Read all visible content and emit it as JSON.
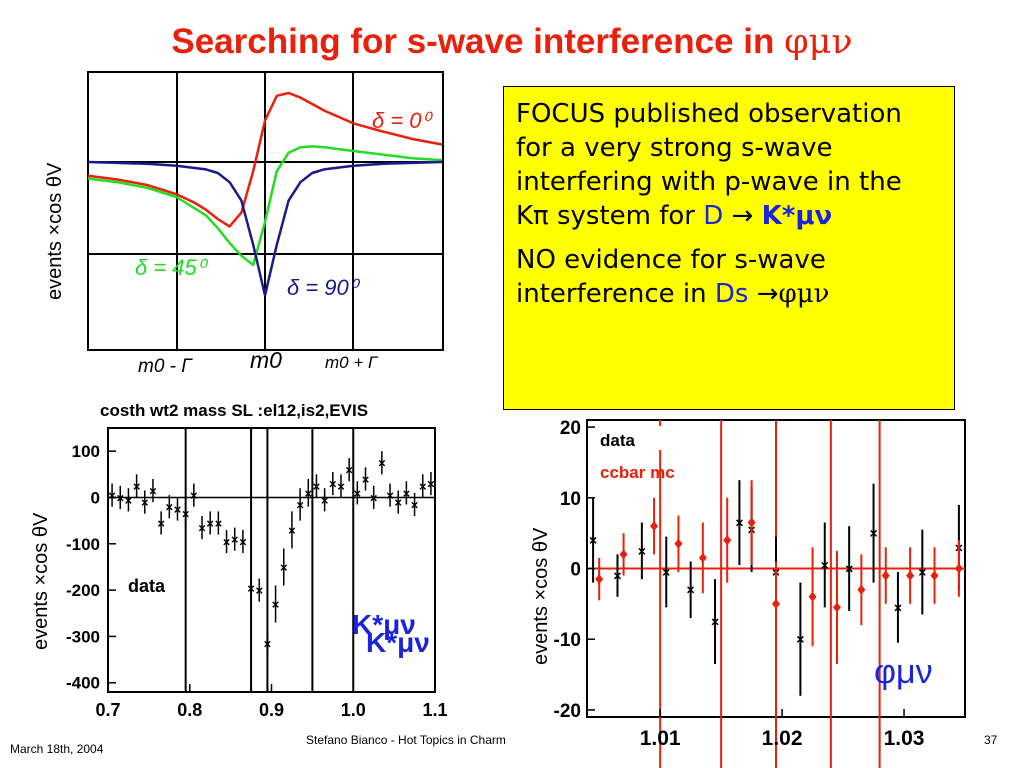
{
  "slide": {
    "title": "Searching for s-wave interference in ",
    "title_symbol": "φμν",
    "footer_date": "March 18th, 2004",
    "footer_center": "Stefano Bianco - Hot Topics in Charm",
    "page_number": "37"
  },
  "note": {
    "p1_text": "FOCUS published observation for a very strong s-wave interfering with p-wave in the Kπ system for ",
    "p1_decay_d": "D",
    "p1_arrow": " → ",
    "p1_decay_product": "K*μν",
    "p2_text": "NO evidence for s-wave interference in ",
    "p2_ds": "Ds",
    "p2_arrow": " →",
    "p2_product": "φμν"
  },
  "colors": {
    "title": "#e8200c",
    "note_bg": "#ffff00",
    "blue": "#1a24d8",
    "red": "#e8200c",
    "green": "#22dd22",
    "navy": "#1a1a8c"
  },
  "chart_data": [
    {
      "type": "line",
      "ylabel": "events ×cos θV",
      "x_ticks": [
        "m0 - Γ",
        "m0",
        "m0 + Γ"
      ],
      "grid": true,
      "series": [
        {
          "name": "δ = 0⁰",
          "color": "#e8200c",
          "x": [
            -3.0,
            -2.5,
            -2.0,
            -1.5,
            -1.2,
            -1.0,
            -0.8,
            -0.6,
            -0.4,
            -0.2,
            0.0,
            0.2,
            0.4,
            0.6,
            0.8,
            1.0,
            1.5,
            2.0,
            2.5,
            3.0
          ],
          "values": [
            -0.15,
            -0.19,
            -0.25,
            -0.35,
            -0.44,
            -0.52,
            -0.62,
            -0.7,
            -0.55,
            -0.1,
            0.45,
            0.72,
            0.75,
            0.7,
            0.63,
            0.56,
            0.42,
            0.33,
            0.25,
            0.19
          ]
        },
        {
          "name": "δ = 45⁰",
          "color": "#22dd22",
          "x": [
            -3.0,
            -2.5,
            -2.0,
            -1.5,
            -1.0,
            -0.8,
            -0.6,
            -0.4,
            -0.2,
            0.0,
            0.2,
            0.4,
            0.6,
            0.8,
            1.0,
            1.5,
            2.0,
            2.5,
            3.0
          ],
          "values": [
            -0.18,
            -0.22,
            -0.28,
            -0.38,
            -0.58,
            -0.72,
            -0.88,
            -1.02,
            -1.12,
            -0.65,
            -0.1,
            0.1,
            0.16,
            0.17,
            0.16,
            0.12,
            0.08,
            0.04,
            0.02
          ]
        },
        {
          "name": "δ = 90⁰",
          "color": "#1a1a8c",
          "x": [
            -3.0,
            -2.5,
            -2.0,
            -1.5,
            -1.0,
            -0.8,
            -0.6,
            -0.4,
            -0.2,
            0.0,
            0.2,
            0.4,
            0.6,
            0.8,
            1.0,
            1.5,
            2.0,
            2.5,
            3.0
          ],
          "values": [
            0.0,
            -0.01,
            -0.02,
            -0.04,
            -0.08,
            -0.12,
            -0.22,
            -0.42,
            -0.9,
            -1.45,
            -0.9,
            -0.42,
            -0.22,
            -0.12,
            -0.08,
            -0.04,
            -0.02,
            -0.01,
            0.0
          ]
        }
      ]
    },
    {
      "type": "scatter",
      "title": "costh wt2 mass SL :el12,is2,EVIS",
      "ylabel": "events ×cos θV",
      "xlim": [
        0.7,
        1.1
      ],
      "ylim": [
        -420,
        150
      ],
      "x_ticks": [
        "0.7",
        "0.8",
        "0.9",
        "1.0",
        "1.1"
      ],
      "y_ticks": [
        "100",
        "0",
        "-100",
        "-200",
        "-300",
        "-400"
      ],
      "annotation_data": "data",
      "annotation_decay": "K*μν",
      "vlines": [
        0.795,
        0.875,
        0.895,
        0.95,
        1.0
      ],
      "series": [
        {
          "name": "data",
          "x": [
            0.705,
            0.715,
            0.725,
            0.735,
            0.745,
            0.755,
            0.765,
            0.775,
            0.785,
            0.795,
            0.805,
            0.815,
            0.825,
            0.835,
            0.845,
            0.855,
            0.865,
            0.875,
            0.885,
            0.895,
            0.905,
            0.915,
            0.925,
            0.935,
            0.945,
            0.955,
            0.965,
            0.975,
            0.985,
            0.995,
            1.005,
            1.015,
            1.025,
            1.035,
            1.045,
            1.055,
            1.065,
            1.075,
            1.085,
            1.095
          ],
          "values": [
            5,
            0,
            -5,
            25,
            -10,
            15,
            -55,
            -20,
            -25,
            -35,
            5,
            -65,
            -55,
            -55,
            -95,
            -90,
            -95,
            -195,
            -200,
            -315,
            -230,
            -150,
            -70,
            -15,
            10,
            25,
            -5,
            30,
            25,
            60,
            10,
            40,
            0,
            75,
            5,
            -10,
            10,
            -15,
            25,
            30
          ],
          "errors": [
            25,
            25,
            25,
            25,
            25,
            25,
            25,
            25,
            25,
            25,
            25,
            25,
            25,
            25,
            25,
            25,
            25,
            25,
            25,
            25,
            40,
            40,
            40,
            35,
            30,
            25,
            25,
            25,
            25,
            25,
            25,
            25,
            25,
            25,
            25,
            25,
            25,
            25,
            25,
            25
          ]
        }
      ]
    },
    {
      "type": "scatter",
      "ylabel": "events ×cos θV",
      "xlim": [
        1.004,
        1.035
      ],
      "ylim": [
        -21,
        21
      ],
      "x_ticks": [
        "1.01",
        "1.02",
        "1.03"
      ],
      "y_ticks": [
        "20",
        "10",
        "0",
        "-10",
        "-20"
      ],
      "annotation": "φμν",
      "vlines": [
        1.01,
        1.015,
        1.0195,
        1.024,
        1.028
      ],
      "series": [
        {
          "name": "data",
          "color": "#000000",
          "x": [
            1.0045,
            1.0065,
            1.0085,
            1.0105,
            1.0125,
            1.0145,
            1.0165,
            1.0175,
            1.0195,
            1.0215,
            1.0235,
            1.0255,
            1.0275,
            1.0295,
            1.0315,
            1.0345
          ],
          "values": [
            4,
            -1,
            2.5,
            -0.5,
            -3,
            -7.5,
            6.5,
            5.5,
            -0.5,
            -10,
            0.5,
            0,
            5,
            -5.5,
            -0.5,
            3
          ],
          "errors": [
            6,
            3,
            4,
            5,
            4,
            6,
            6,
            6,
            5,
            8,
            6,
            6,
            7,
            5,
            6,
            6
          ]
        },
        {
          "name": "ccbar mc",
          "color": "#e8200c",
          "x": [
            1.005,
            1.007,
            1.0095,
            1.0115,
            1.0135,
            1.0155,
            1.0175,
            1.0195,
            1.0225,
            1.0245,
            1.0265,
            1.0285,
            1.0305,
            1.0325,
            1.0345
          ],
          "values": [
            -1.5,
            2,
            6,
            3.5,
            1.5,
            4,
            6.5,
            -5,
            -4,
            -5.5,
            -3,
            -1,
            -1,
            -1,
            0
          ],
          "errors": [
            3,
            3,
            4,
            4,
            5,
            6,
            6,
            6,
            7,
            8,
            5,
            4,
            4,
            4,
            4
          ]
        }
      ]
    }
  ],
  "chart_labels": {
    "delta0": "δ = 0⁰",
    "delta45": "δ = 45⁰",
    "delta90": "δ = 90⁰",
    "xtick_left": "m0 - Γ",
    "xtick_mid": "m0",
    "xtick_right": "m0 + Γ",
    "legend_data": "data",
    "legend_mc": "ccbar mc"
  }
}
